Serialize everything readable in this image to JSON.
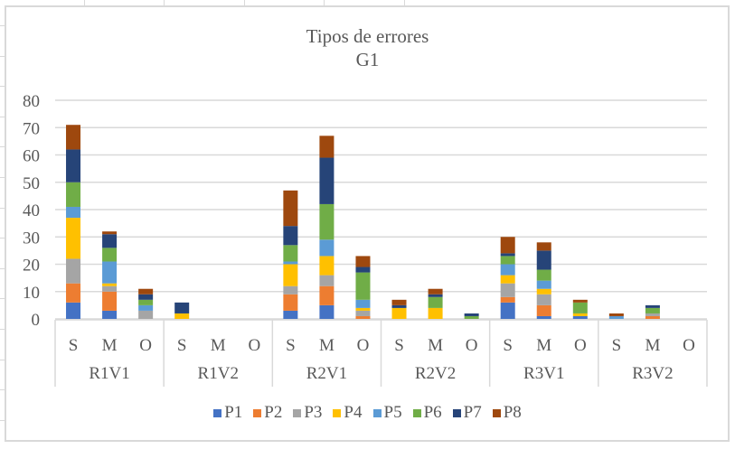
{
  "chart_data": {
    "type": "bar",
    "stacked": true,
    "title": "Tipos de errores",
    "subtitle": "G1",
    "xlabel": "",
    "ylabel": "",
    "ylim": [
      0,
      80
    ],
    "yticks": [
      0,
      10,
      20,
      30,
      40,
      50,
      60,
      70,
      80
    ],
    "grid": true,
    "legend_position": "bottom",
    "groups": [
      "R1V1",
      "R1V2",
      "R2V1",
      "R2V2",
      "R3V1",
      "R3V2"
    ],
    "subcategories": [
      "S",
      "M",
      "O"
    ],
    "categories": [
      "R1V1 S",
      "R1V1 M",
      "R1V1 O",
      "R1V2 S",
      "R1V2 M",
      "R1V2 O",
      "R2V1 S",
      "R2V1 M",
      "R2V1 O",
      "R2V2 S",
      "R2V2 M",
      "R2V2 O",
      "R3V1 S",
      "R3V1 M",
      "R3V1 O",
      "R3V2 S",
      "R3V2 M",
      "R3V2 O"
    ],
    "series": [
      {
        "name": "P1",
        "color": "#4472C4",
        "values": [
          6,
          3,
          0,
          0,
          0,
          0,
          3,
          5,
          0,
          0,
          0,
          0,
          6,
          1,
          1,
          0,
          0,
          0
        ]
      },
      {
        "name": "P2",
        "color": "#ED7D31",
        "values": [
          7,
          7,
          0,
          0,
          0,
          0,
          6,
          7,
          1,
          0,
          0,
          0,
          2,
          4,
          0,
          0,
          1,
          0
        ]
      },
      {
        "name": "P3",
        "color": "#A5A5A5",
        "values": [
          9,
          2,
          3,
          0,
          0,
          0,
          3,
          4,
          2,
          0,
          0,
          0,
          5,
          4,
          0,
          0,
          1,
          0
        ]
      },
      {
        "name": "P4",
        "color": "#FFC000",
        "values": [
          15,
          1,
          0,
          2,
          0,
          0,
          8,
          7,
          1,
          4,
          4,
          0,
          3,
          2,
          1,
          0,
          0,
          0
        ]
      },
      {
        "name": "P5",
        "color": "#5B9BD5",
        "values": [
          4,
          8,
          2,
          0,
          0,
          0,
          1,
          6,
          3,
          0,
          0,
          0,
          4,
          3,
          0,
          1,
          0,
          0
        ]
      },
      {
        "name": "P6",
        "color": "#70AD47",
        "values": [
          9,
          5,
          2,
          0,
          0,
          0,
          6,
          13,
          10,
          0,
          4,
          1,
          3,
          4,
          4,
          0,
          2,
          0
        ]
      },
      {
        "name": "P7",
        "color": "#264478",
        "values": [
          12,
          5,
          2,
          4,
          0,
          0,
          7,
          17,
          2,
          1,
          1,
          1,
          1,
          7,
          0,
          0,
          1,
          0
        ]
      },
      {
        "name": "P8",
        "color": "#9E480E",
        "values": [
          9,
          1,
          2,
          0,
          0,
          0,
          13,
          8,
          4,
          2,
          2,
          0,
          6,
          3,
          1,
          1,
          0,
          0
        ]
      }
    ],
    "totals": [
      71,
      32,
      11,
      6,
      0,
      0,
      47,
      67,
      23,
      7,
      11,
      2,
      30,
      28,
      7,
      2,
      5,
      0
    ]
  }
}
